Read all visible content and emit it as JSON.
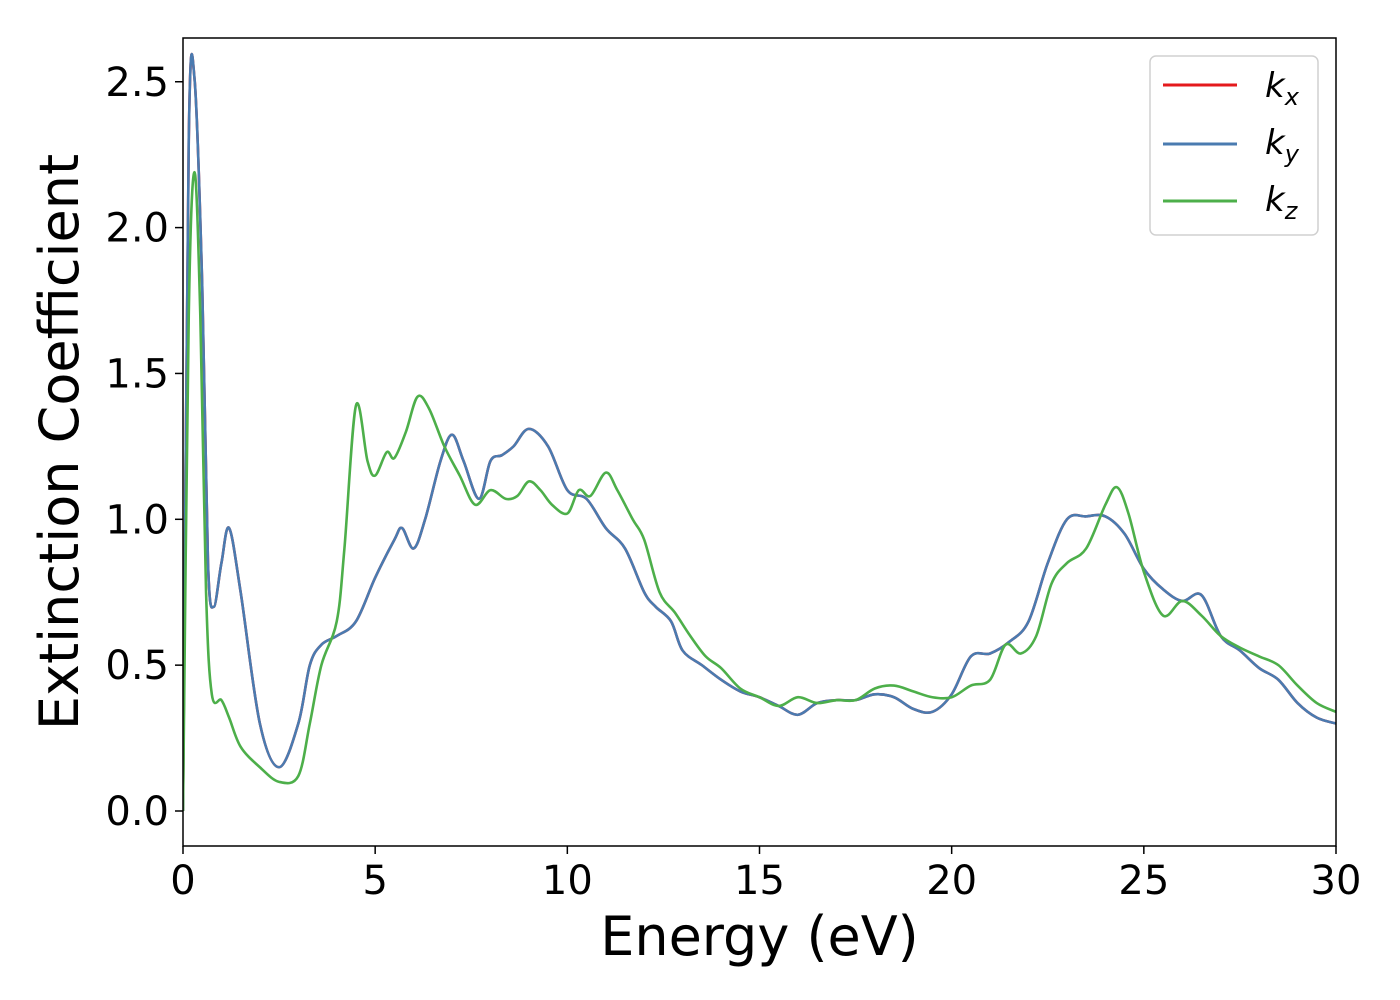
{
  "chart_data": {
    "type": "line",
    "title": "",
    "xlabel": "Energy (eV)",
    "ylabel": "Extinction Coefficient",
    "xlim": [
      0,
      30
    ],
    "ylim": [
      -0.12,
      2.65
    ],
    "x_ticks": [
      "0",
      "5",
      "10",
      "15",
      "20",
      "25",
      "30"
    ],
    "x_tick_values": [
      0,
      5,
      10,
      15,
      20,
      25,
      30
    ],
    "y_ticks": [
      "0.0",
      "0.5",
      "1.0",
      "1.5",
      "2.0",
      "2.5"
    ],
    "y_tick_values": [
      0.0,
      0.5,
      1.0,
      1.5,
      2.0,
      2.5
    ],
    "grid": false,
    "legend_position": "top-right",
    "series": [
      {
        "name": "k_x",
        "legend_main": "k",
        "legend_sub": "x",
        "color": "#e41a1c",
        "x": [
          0,
          0.15,
          0.3,
          0.5,
          0.65,
          0.8,
          1.0,
          1.2,
          1.5,
          2.0,
          2.5,
          3.0,
          3.3,
          3.6,
          4.0,
          4.5,
          5.0,
          5.5,
          5.7,
          6.0,
          6.3,
          6.7,
          7.0,
          7.3,
          7.7,
          8.0,
          8.3,
          8.6,
          9.0,
          9.5,
          10.0,
          10.5,
          11.0,
          11.5,
          12.0,
          12.3,
          12.7,
          13.0,
          13.5,
          14.0,
          14.5,
          15.0,
          15.5,
          16.0,
          16.5,
          17.0,
          17.5,
          18.0,
          18.5,
          19.0,
          19.5,
          20.0,
          20.5,
          21.0,
          21.5,
          22.0,
          22.5,
          23.0,
          23.5,
          24.0,
          24.5,
          25.0,
          25.5,
          26.0,
          26.5,
          27.0,
          27.5,
          28.0,
          28.5,
          29.0,
          29.5,
          30.0
        ],
        "y": [
          0.0,
          2.3,
          2.51,
          1.8,
          0.85,
          0.7,
          0.85,
          0.97,
          0.75,
          0.3,
          0.15,
          0.3,
          0.5,
          0.57,
          0.6,
          0.65,
          0.8,
          0.93,
          0.97,
          0.9,
          1.0,
          1.2,
          1.29,
          1.2,
          1.07,
          1.2,
          1.22,
          1.25,
          1.31,
          1.25,
          1.1,
          1.07,
          0.97,
          0.9,
          0.75,
          0.7,
          0.65,
          0.55,
          0.5,
          0.45,
          0.41,
          0.39,
          0.36,
          0.33,
          0.37,
          0.38,
          0.38,
          0.4,
          0.39,
          0.35,
          0.34,
          0.4,
          0.53,
          0.54,
          0.58,
          0.65,
          0.85,
          1.0,
          1.01,
          1.01,
          0.95,
          0.83,
          0.76,
          0.72,
          0.74,
          0.6,
          0.55,
          0.49,
          0.45,
          0.37,
          0.32,
          0.3
        ]
      },
      {
        "name": "k_y",
        "legend_main": "k",
        "legend_sub": "y",
        "color": "#4a7bb0",
        "x": [
          0,
          0.15,
          0.3,
          0.5,
          0.65,
          0.8,
          1.0,
          1.2,
          1.5,
          2.0,
          2.5,
          3.0,
          3.3,
          3.6,
          4.0,
          4.5,
          5.0,
          5.5,
          5.7,
          6.0,
          6.3,
          6.7,
          7.0,
          7.3,
          7.7,
          8.0,
          8.3,
          8.6,
          9.0,
          9.5,
          10.0,
          10.5,
          11.0,
          11.5,
          12.0,
          12.3,
          12.7,
          13.0,
          13.5,
          14.0,
          14.5,
          15.0,
          15.5,
          16.0,
          16.5,
          17.0,
          17.5,
          18.0,
          18.5,
          19.0,
          19.5,
          20.0,
          20.5,
          21.0,
          21.5,
          22.0,
          22.5,
          23.0,
          23.5,
          24.0,
          24.5,
          25.0,
          25.5,
          26.0,
          26.5,
          27.0,
          27.5,
          28.0,
          28.5,
          29.0,
          29.5,
          30.0
        ],
        "y": [
          0.0,
          2.3,
          2.51,
          1.8,
          0.85,
          0.7,
          0.85,
          0.97,
          0.75,
          0.3,
          0.15,
          0.3,
          0.5,
          0.57,
          0.6,
          0.65,
          0.8,
          0.93,
          0.97,
          0.9,
          1.0,
          1.2,
          1.29,
          1.2,
          1.07,
          1.2,
          1.22,
          1.25,
          1.31,
          1.25,
          1.1,
          1.07,
          0.97,
          0.9,
          0.75,
          0.7,
          0.65,
          0.55,
          0.5,
          0.45,
          0.41,
          0.39,
          0.36,
          0.33,
          0.37,
          0.38,
          0.38,
          0.4,
          0.39,
          0.35,
          0.34,
          0.4,
          0.53,
          0.54,
          0.58,
          0.65,
          0.85,
          1.0,
          1.01,
          1.01,
          0.95,
          0.83,
          0.76,
          0.72,
          0.74,
          0.6,
          0.55,
          0.49,
          0.45,
          0.37,
          0.32,
          0.3
        ]
      },
      {
        "name": "k_z",
        "legend_main": "k",
        "legend_sub": "z",
        "color": "#4daf4a",
        "x": [
          0,
          0.15,
          0.3,
          0.45,
          0.6,
          0.75,
          1.0,
          1.2,
          1.5,
          2.0,
          2.5,
          3.0,
          3.3,
          3.6,
          4.0,
          4.2,
          4.5,
          4.8,
          5.0,
          5.3,
          5.5,
          5.8,
          6.1,
          6.4,
          6.8,
          7.2,
          7.6,
          8.0,
          8.4,
          8.7,
          9.0,
          9.3,
          9.6,
          10.0,
          10.3,
          10.6,
          11.0,
          11.3,
          11.7,
          12.0,
          12.4,
          12.8,
          13.2,
          13.6,
          14.0,
          14.5,
          15.0,
          15.5,
          16.0,
          16.5,
          17.0,
          17.5,
          18.0,
          18.5,
          19.0,
          19.5,
          20.0,
          20.5,
          21.0,
          21.4,
          21.8,
          22.2,
          22.6,
          23.0,
          23.5,
          24.0,
          24.3,
          24.6,
          25.0,
          25.5,
          26.0,
          26.5,
          27.0,
          27.5,
          28.0,
          28.5,
          29.0,
          29.5,
          30.0
        ],
        "y": [
          0.0,
          1.7,
          2.19,
          1.7,
          0.75,
          0.4,
          0.38,
          0.32,
          0.22,
          0.15,
          0.1,
          0.12,
          0.3,
          0.5,
          0.65,
          0.9,
          1.39,
          1.2,
          1.15,
          1.23,
          1.21,
          1.3,
          1.42,
          1.38,
          1.25,
          1.15,
          1.05,
          1.1,
          1.07,
          1.08,
          1.13,
          1.1,
          1.05,
          1.02,
          1.1,
          1.08,
          1.16,
          1.1,
          1.0,
          0.93,
          0.75,
          0.68,
          0.6,
          0.53,
          0.49,
          0.42,
          0.39,
          0.36,
          0.39,
          0.37,
          0.38,
          0.38,
          0.42,
          0.43,
          0.41,
          0.39,
          0.39,
          0.43,
          0.45,
          0.57,
          0.54,
          0.6,
          0.78,
          0.85,
          0.9,
          1.05,
          1.11,
          1.02,
          0.82,
          0.67,
          0.72,
          0.67,
          0.6,
          0.56,
          0.53,
          0.5,
          0.43,
          0.37,
          0.34
        ]
      }
    ]
  }
}
